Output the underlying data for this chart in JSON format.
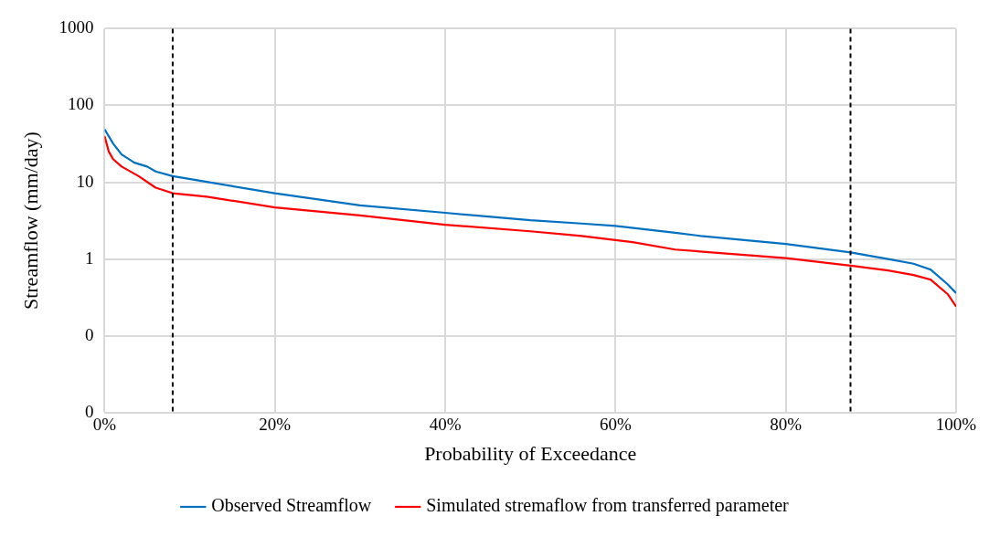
{
  "chart_data": {
    "type": "line",
    "xlabel": "Probability of Exceedance",
    "ylabel": "Streamflow (mm/day)",
    "log": "y",
    "grid": true,
    "legend": "bottom",
    "marker": "none",
    "line_style": "solid",
    "xlim": [
      0,
      100
    ],
    "xticks": [
      {
        "value": 0,
        "label": "0%"
      },
      {
        "value": 20,
        "label": "20%"
      },
      {
        "value": 40,
        "label": "40%"
      },
      {
        "value": 60,
        "label": "60%"
      },
      {
        "value": 80,
        "label": "80%"
      },
      {
        "value": 100,
        "label": "100%"
      }
    ],
    "ylim": [
      0.01,
      1000
    ],
    "yticks": [
      {
        "value": 0.01,
        "label": "0"
      },
      {
        "value": 0.1,
        "label": "0"
      },
      1,
      10,
      100,
      1000
    ],
    "series": [
      {
        "name": "Observed Streamflow",
        "color": "#0070c0",
        "x": [
          0,
          1,
          2,
          3.5,
          5,
          6,
          8,
          12,
          20,
          30,
          40,
          50,
          56,
          60,
          67,
          70,
          80,
          87.6,
          92,
          95,
          97,
          99,
          100
        ],
        "values": [
          49,
          32,
          23,
          18,
          16,
          13.8,
          12,
          10.1,
          7.2,
          5.0,
          4.0,
          3.2,
          2.9,
          2.7,
          2.2,
          2.0,
          1.57,
          1.22,
          1.0,
          0.87,
          0.73,
          0.47,
          0.36
        ]
      },
      {
        "name": "Simulated stremaflow from transferred parameter",
        "color": "#ff0000",
        "x": [
          0,
          0.5,
          1,
          2,
          4,
          6,
          8,
          12,
          20,
          30,
          40,
          50,
          56,
          62,
          67,
          80,
          87.6,
          92,
          95,
          97,
          99,
          100
        ],
        "values": [
          40,
          25,
          20,
          16,
          12,
          8.5,
          7.2,
          6.5,
          4.7,
          3.7,
          2.8,
          2.3,
          2.0,
          1.66,
          1.33,
          1.03,
          0.82,
          0.71,
          0.62,
          0.54,
          0.35,
          0.24
        ]
      }
    ],
    "ref_lines": [
      {
        "axis": "x",
        "value": 8,
        "color": "#000000",
        "line_style": "dashed"
      },
      {
        "axis": "x",
        "value": 87.6,
        "color": "#000000",
        "line_style": "dashed"
      }
    ]
  }
}
